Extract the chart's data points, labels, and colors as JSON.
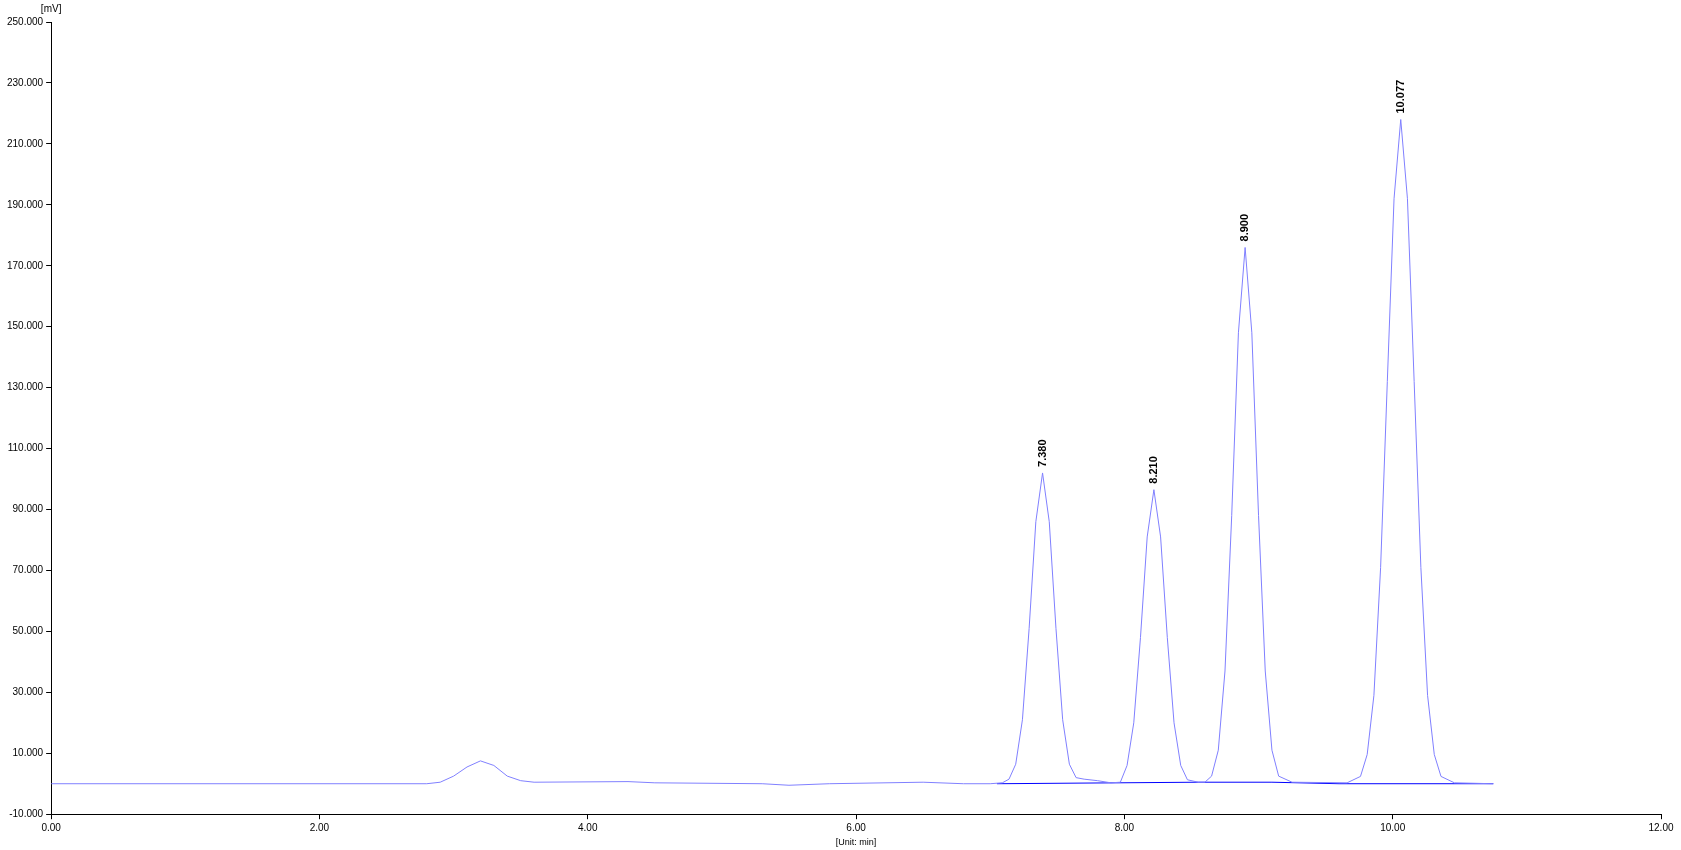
{
  "chart_data": {
    "type": "line",
    "xlabel": "[Unit: min]",
    "ylabel": "[mV]",
    "xlim": [
      0,
      12
    ],
    "ylim": [
      -10,
      250
    ],
    "xticks": [
      {
        "value": 0,
        "label": "0.00"
      },
      {
        "value": 2,
        "label": "2.00"
      },
      {
        "value": 4,
        "label": "4.00"
      },
      {
        "value": 6,
        "label": "6.00"
      },
      {
        "value": 8,
        "label": "8.00"
      },
      {
        "value": 10,
        "label": "10.00"
      },
      {
        "value": 12,
        "label": "12.00"
      }
    ],
    "yticks": [
      {
        "value": -10,
        "label": "-10.000"
      },
      {
        "value": 10,
        "label": "10.000"
      },
      {
        "value": 30,
        "label": "30.000"
      },
      {
        "value": 50,
        "label": "50.000"
      },
      {
        "value": 70,
        "label": "70.000"
      },
      {
        "value": 90,
        "label": "90.000"
      },
      {
        "value": 110,
        "label": "110.000"
      },
      {
        "value": 130,
        "label": "130.000"
      },
      {
        "value": 150,
        "label": "150.000"
      },
      {
        "value": 170,
        "label": "170.000"
      },
      {
        "value": 190,
        "label": "190.000"
      },
      {
        "value": 210,
        "label": "210.000"
      },
      {
        "value": 230,
        "label": "230.000"
      },
      {
        "value": 250,
        "label": "250.000"
      }
    ],
    "grid": false,
    "legend": false,
    "marker": "none",
    "line_style": "solid",
    "series": [
      {
        "color": "#8080ff",
        "x": [
          0,
          2.8,
          2.9,
          3.0,
          3.1,
          3.2,
          3.3,
          3.4,
          3.5,
          3.6,
          4.3,
          4.5,
          5.3,
          5.5,
          5.8,
          6.5,
          6.8,
          7.0,
          7.09,
          7.14,
          7.19,
          7.24,
          7.29,
          7.34,
          7.39,
          7.44,
          7.49,
          7.54,
          7.59,
          7.64,
          7.7,
          7.8,
          7.9,
          7.97,
          8.02,
          8.07,
          8.12,
          8.17,
          8.22,
          8.27,
          8.32,
          8.37,
          8.42,
          8.47,
          8.55,
          8.6,
          8.65,
          8.7,
          8.75,
          8.8,
          8.85,
          8.9,
          8.95,
          9.0,
          9.05,
          9.1,
          9.15,
          9.25,
          9.66,
          9.76,
          9.81,
          9.86,
          9.91,
          9.96,
          10.01,
          10.06,
          10.11,
          10.16,
          10.21,
          10.26,
          10.31,
          10.36,
          10.46,
          10.75
        ],
        "values": [
          0,
          0,
          0.5,
          2.5,
          5.5,
          7.5,
          6,
          2.5,
          1,
          0.5,
          0.7,
          0.3,
          0,
          -0.5,
          0,
          0.5,
          0,
          0,
          0.3,
          1.5,
          6.4,
          21,
          51,
          86,
          102,
          86,
          51,
          21,
          6.4,
          2,
          1.5,
          1,
          0.3,
          0.5,
          6,
          20,
          48,
          81,
          96.5,
          81,
          48,
          20,
          6,
          1.3,
          0.5,
          0.5,
          2.5,
          11,
          37,
          88,
          148,
          176,
          148,
          88,
          37,
          11,
          2.5,
          0.5,
          0.3,
          2.4,
          9.6,
          29,
          71,
          132,
          192,
          218,
          192,
          132,
          71,
          29,
          9.6,
          2.4,
          0.3,
          0
        ]
      },
      {
        "color": "#0000ff",
        "x": [
          7.05,
          8.55,
          9.1,
          9.6,
          10.75
        ],
        "values": [
          0,
          0.5,
          0.5,
          0,
          0
        ]
      }
    ],
    "annotations": [
      {
        "text": "7.380",
        "x": 7.39,
        "y": 102
      },
      {
        "text": "8.210",
        "x": 8.22,
        "y": 96.5
      },
      {
        "text": "8.900",
        "x": 8.9,
        "y": 176
      },
      {
        "text": "10.077",
        "x": 10.06,
        "y": 218
      }
    ]
  }
}
